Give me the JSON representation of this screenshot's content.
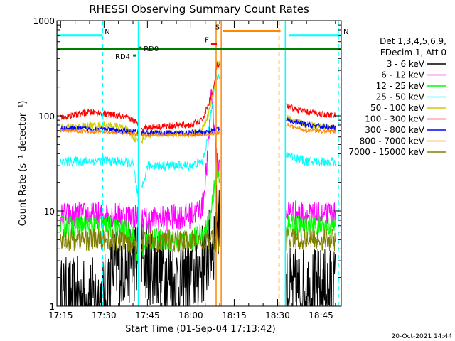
{
  "chart_data": {
    "type": "line",
    "title": "RHESSI Observing Summary Count Rates",
    "xlabel": "Start Time (01-Sep-04 17:13:42)",
    "ylabel": "Count Rate (s⁻¹ detector⁻¹)",
    "yscale": "log",
    "xlim": [
      "17:13:42",
      "18:52:00"
    ],
    "ylim": [
      1,
      1000
    ],
    "x_ticks": [
      "17:15",
      "17:30",
      "17:45",
      "18:00",
      "18:15",
      "18:30",
      "18:45"
    ],
    "y_ticks": [
      1,
      10,
      100,
      1000
    ],
    "y_tick_labels": [
      "1",
      "10",
      "100",
      "1000"
    ],
    "legend_header": [
      "Det 1,3,4,5,6,9,",
      "FDecim 1, Att 0"
    ],
    "footer_date": "20-Oct-2021 14:44",
    "data_gaps": [
      [
        "17:42",
        "17:43"
      ],
      [
        "18:10",
        "18:33"
      ]
    ],
    "series": [
      {
        "name": "3 - 6 keV",
        "color": "#000000",
        "x": [
          "17:15",
          "17:30",
          "17:33",
          "17:40",
          "17:45",
          "17:55",
          "18:00",
          "18:05",
          "18:08",
          "18:09",
          "18:33",
          "18:40",
          "18:50"
        ],
        "values": [
          1.2,
          1.2,
          2.5,
          3.0,
          3.0,
          1.8,
          2.0,
          3.0,
          5.0,
          10,
          1.5,
          1.5,
          1.5
        ]
      },
      {
        "name": "6 - 12 keV",
        "color": "#ff00ff",
        "x": [
          "17:15",
          "17:30",
          "17:40",
          "17:45",
          "18:00",
          "18:04",
          "18:06",
          "18:07",
          "18:08",
          "18:09",
          "18:33",
          "18:40",
          "18:50"
        ],
        "values": [
          9,
          9,
          9,
          8,
          9,
          11,
          40,
          200,
          90,
          30,
          10,
          9,
          9
        ]
      },
      {
        "name": "12 - 25 keV",
        "color": "#00ff00",
        "x": [
          "17:15",
          "17:30",
          "17:40",
          "17:42",
          "17:45",
          "18:00",
          "18:05",
          "18:07",
          "18:08",
          "18:09",
          "18:33",
          "18:40",
          "18:50"
        ],
        "values": [
          7,
          7,
          6,
          3.0,
          5,
          5,
          6,
          9,
          16,
          25,
          7,
          7,
          7
        ]
      },
      {
        "name": "25 - 50 keV",
        "color": "#00ffff",
        "x": [
          "17:15",
          "17:30",
          "17:40",
          "17:42",
          "17:45",
          "18:00",
          "18:04",
          "18:06",
          "18:08",
          "18:09",
          "18:33",
          "18:40",
          "18:50"
        ],
        "values": [
          33,
          34,
          32,
          12,
          30,
          30,
          33,
          60,
          200,
          260,
          40,
          33,
          33
        ]
      },
      {
        "name": "50 - 100 keV",
        "color": "#cccc00",
        "x": [
          "17:15",
          "17:30",
          "17:37",
          "17:42",
          "17:45",
          "18:00",
          "18:04",
          "18:06",
          "18:08",
          "18:09",
          "18:33",
          "18:40",
          "18:50"
        ],
        "values": [
          75,
          80,
          75,
          52,
          64,
          64,
          72,
          100,
          200,
          380,
          95,
          80,
          75
        ]
      },
      {
        "name": "100 - 300 keV",
        "color": "#ff0000",
        "x": [
          "17:15",
          "17:25",
          "17:35",
          "17:40",
          "17:43",
          "17:50",
          "18:00",
          "18:04",
          "18:06",
          "18:08",
          "18:09",
          "18:33",
          "18:40",
          "18:50"
        ],
        "values": [
          95,
          110,
          100,
          90,
          75,
          78,
          80,
          90,
          130,
          200,
          340,
          125,
          110,
          100
        ]
      },
      {
        "name": "300 - 800 keV",
        "color": "#0000ff",
        "x": [
          "17:15",
          "17:30",
          "17:40",
          "17:45",
          "18:00",
          "18:05",
          "18:08",
          "18:09",
          "18:33",
          "18:40",
          "18:50"
        ],
        "values": [
          74,
          72,
          68,
          66,
          66,
          67,
          70,
          72,
          90,
          80,
          75
        ]
      },
      {
        "name": "800 - 7000 keV",
        "color": "#ff8800",
        "x": [
          "17:15",
          "17:30",
          "17:40",
          "17:45",
          "18:00",
          "18:05",
          "18:08",
          "18:09",
          "18:33",
          "18:40",
          "18:50"
        ],
        "values": [
          70,
          68,
          65,
          63,
          63,
          64,
          65,
          66,
          80,
          70,
          68
        ]
      },
      {
        "name": "7000 - 15000 keV",
        "color": "#808000",
        "x": [
          "17:15",
          "17:30",
          "17:40",
          "17:45",
          "18:00",
          "18:05",
          "18:08",
          "18:09",
          "18:33",
          "18:40",
          "18:50"
        ],
        "values": [
          5,
          5,
          4.7,
          4.8,
          4.8,
          4.8,
          4.8,
          4.8,
          5,
          5,
          5
        ]
      }
    ],
    "annotations": [
      {
        "label": "N",
        "color": "#00ffff",
        "x_start": "17:13:42",
        "x_end": "17:29:30",
        "level": 700
      },
      {
        "label": "N",
        "color": "#00ffff",
        "x_start": "18:34",
        "x_end": "18:52",
        "level": 700
      },
      {
        "label": "",
        "color": "#008000",
        "x_start": "17:13:42",
        "x_end": "18:52",
        "level": 500
      },
      {
        "label": "RD4",
        "color": "#008000",
        "x_start": "17:40",
        "x_end": "17:41",
        "level": 430
      },
      {
        "label": "RD0",
        "color": "#008000",
        "x_start": "17:42",
        "x_end": "17:43",
        "level": 520
      },
      {
        "label": "F",
        "color": "#ff0000",
        "x_start": "18:07",
        "x_end": "18:09",
        "level": 570
      },
      {
        "label": "S",
        "color": "#ff8800",
        "x_start": "18:11",
        "x_end": "18:31",
        "level": 780
      }
    ],
    "vertical_markers": [
      {
        "x": "17:13:55",
        "color": "#00ffff",
        "style": "solid"
      },
      {
        "x": "17:29:30",
        "color": "#00ffff",
        "style": "dashed"
      },
      {
        "x": "17:41:50",
        "color": "#00ffff",
        "style": "solid"
      },
      {
        "x": "18:08:45",
        "color": "#ff8800",
        "style": "solid"
      },
      {
        "x": "18:10:30",
        "color": "#ff8800",
        "style": "solid"
      },
      {
        "x": "18:30:30",
        "color": "#ff8800",
        "style": "dashed"
      },
      {
        "x": "18:32:40",
        "color": "#00ffff",
        "style": "solid"
      },
      {
        "x": "18:51:00",
        "color": "#00ffff",
        "style": "dashed"
      }
    ],
    "grid": false,
    "legend_position": "right"
  }
}
